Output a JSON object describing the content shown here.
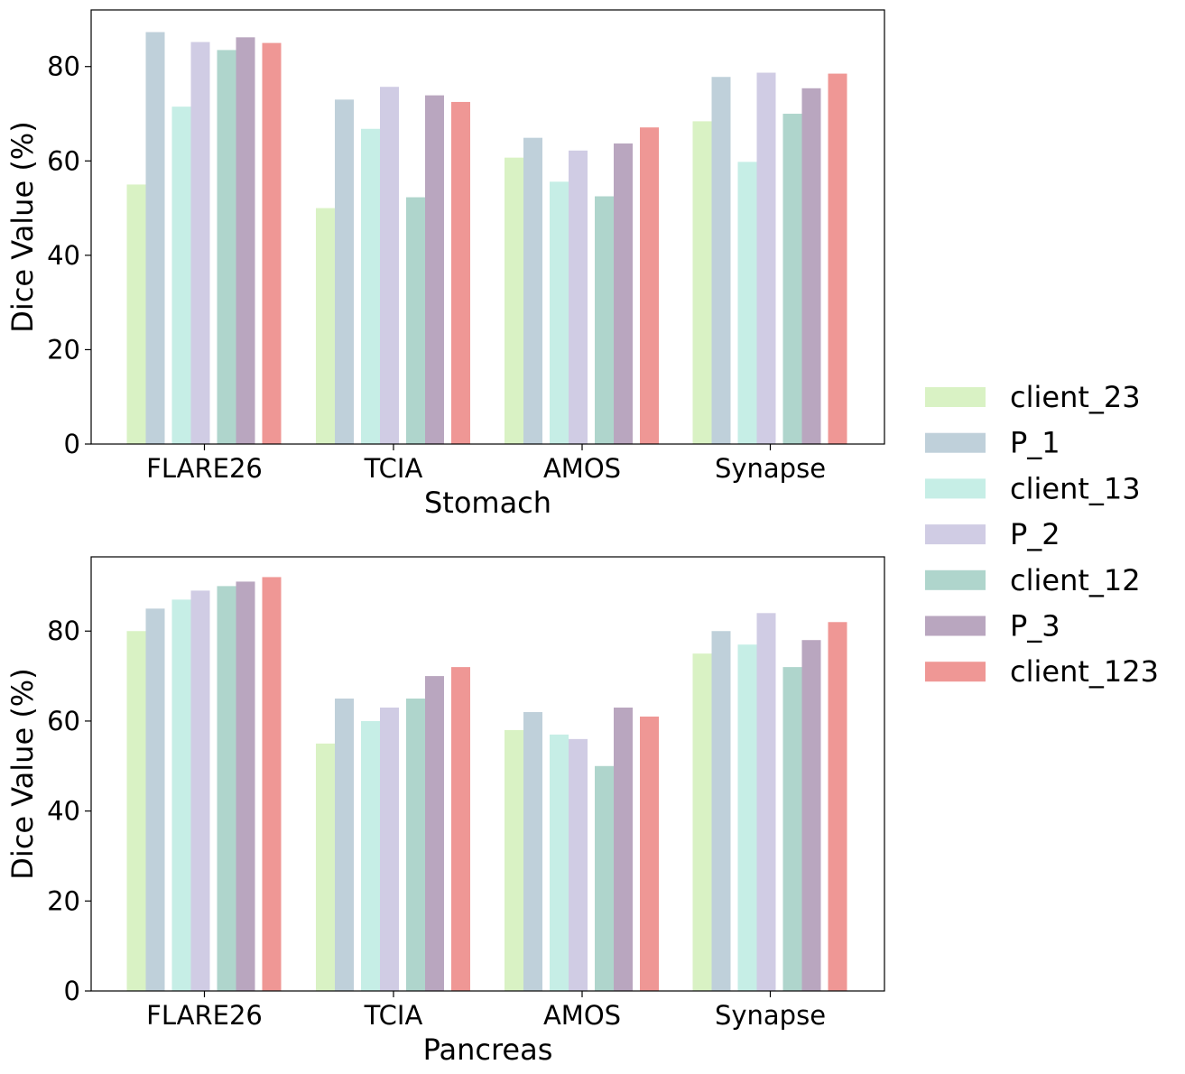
{
  "chart_data": [
    {
      "type": "bar",
      "xlabel": "Stomach",
      "ylabel": "Dice Value (%)",
      "ylim": [
        0,
        92
      ],
      "yticks": [
        0,
        20,
        40,
        60,
        80
      ],
      "categories": [
        "FLARE26",
        "TCIA",
        "AMOS",
        "Synapse"
      ],
      "grid": false,
      "series": [
        {
          "name": "client_23",
          "color": "#d9f2c4",
          "values": [
            55,
            50,
            60.7,
            68.4
          ]
        },
        {
          "name": "P_1",
          "color": "#bfd0da",
          "values": [
            87.3,
            73,
            64.9,
            77.8
          ]
        },
        {
          "name": "client_13",
          "color": "#c6eee6",
          "values": [
            71.5,
            66.8,
            55.6,
            59.8
          ]
        },
        {
          "name": "P_2",
          "color": "#d0cce4",
          "values": [
            85.2,
            75.7,
            62.2,
            78.7
          ]
        },
        {
          "name": "client_12",
          "color": "#afd5cc",
          "values": [
            83.5,
            52.3,
            52.5,
            70
          ]
        },
        {
          "name": "P_3",
          "color": "#b9a6bf",
          "values": [
            86.2,
            73.9,
            63.7,
            75.4
          ]
        },
        {
          "name": "client_123",
          "color": "#ef9795",
          "values": [
            85,
            72.5,
            67.1,
            78.5
          ]
        }
      ]
    },
    {
      "type": "bar",
      "xlabel": "Pancreas",
      "ylabel": "Dice Value (%)",
      "ylim": [
        0,
        96.5
      ],
      "yticks": [
        0,
        20,
        40,
        60,
        80
      ],
      "categories": [
        "FLARE26",
        "TCIA",
        "AMOS",
        "Synapse"
      ],
      "grid": false,
      "series": [
        {
          "name": "client_23",
          "color": "#d9f2c4",
          "values": [
            80,
            55,
            58,
            75
          ]
        },
        {
          "name": "P_1",
          "color": "#bfd0da",
          "values": [
            85,
            65,
            62,
            80
          ]
        },
        {
          "name": "client_13",
          "color": "#c6eee6",
          "values": [
            87,
            60,
            57,
            77
          ]
        },
        {
          "name": "P_2",
          "color": "#d0cce4",
          "values": [
            89,
            63,
            56,
            84
          ]
        },
        {
          "name": "client_12",
          "color": "#afd5cc",
          "values": [
            90,
            65,
            50,
            72
          ]
        },
        {
          "name": "P_3",
          "color": "#b9a6bf",
          "values": [
            91,
            70,
            63,
            78
          ]
        },
        {
          "name": "client_123",
          "color": "#ef9795",
          "values": [
            92,
            72,
            61,
            82
          ]
        }
      ]
    }
  ],
  "legend": {
    "placement": "right",
    "entries": [
      "client_23",
      "P_1",
      "client_13",
      "P_2",
      "client_12",
      "P_3",
      "client_123"
    ]
  }
}
